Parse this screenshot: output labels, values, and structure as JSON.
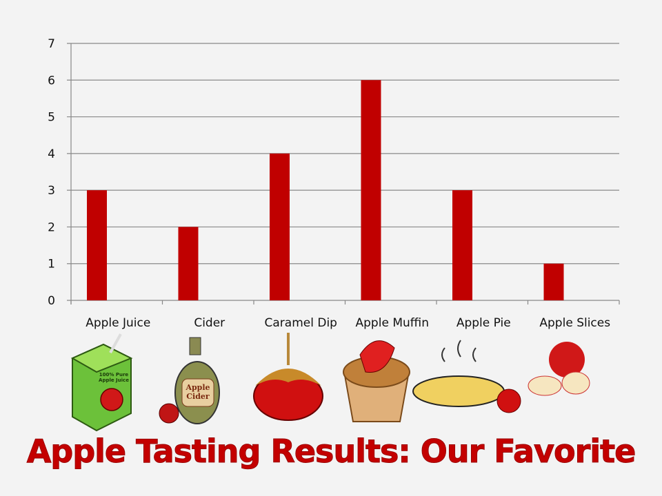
{
  "chart_data": {
    "type": "bar",
    "title": "Apple Tasting Results: Our Favorite",
    "categories": [
      "Apple Juice",
      "Cider",
      "Caramel Dip",
      "Apple Muffin",
      "Apple Pie",
      "Apple Slices"
    ],
    "values": [
      3,
      2,
      4,
      6,
      3,
      1
    ],
    "ylim": [
      0,
      7
    ],
    "yticks": [
      0,
      1,
      2,
      3,
      4,
      5,
      6,
      7
    ],
    "grid": true,
    "legend": "none",
    "bar_color": "#c00000",
    "illustrations": [
      "juice-box-icon",
      "cider-jug-icon",
      "caramel-apple-icon",
      "apple-muffin-icon",
      "apple-pie-icon",
      "apple-slices-icon"
    ],
    "illustration_lettering": [
      "100% Pure Apple Juice",
      "Apple Cider"
    ]
  }
}
